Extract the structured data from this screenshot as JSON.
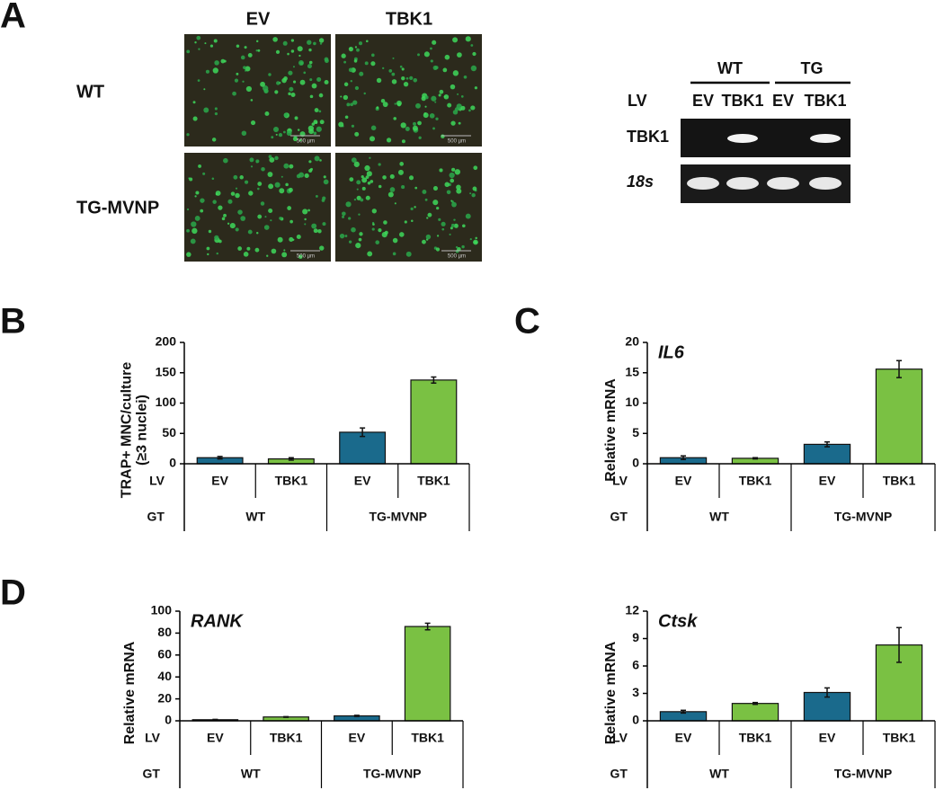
{
  "panel_a": {
    "panel": "A",
    "columns": [
      "EV",
      "TBK1"
    ],
    "rows": [
      "WT",
      "TG-MVNP"
    ],
    "scale_bar": "500 µm",
    "gel": {
      "groups": [
        "WT",
        "TG"
      ],
      "lv_label": "LV",
      "lanes": [
        "EV",
        "TBK1",
        "EV",
        "TBK1"
      ],
      "rows": [
        "TBK1",
        "18s"
      ]
    }
  },
  "chart_data": [
    {
      "type": "bar",
      "panel": "B",
      "ylabel": [
        "TRAP+ MNC/culture",
        "(≥3 nuclei)"
      ],
      "row_labels": [
        "LV",
        "GT"
      ],
      "categories": [
        "EV",
        "TBK1",
        "EV",
        "TBK1"
      ],
      "groups": [
        "WT",
        "TG-MVNP"
      ],
      "values": [
        10,
        8,
        52,
        138
      ],
      "errors": [
        2,
        2,
        7,
        5
      ],
      "colors": [
        "#1a6a8c",
        "#7ac143",
        "#1a6a8c",
        "#7ac143"
      ],
      "ylim": [
        0,
        200
      ],
      "yticks": [
        0,
        50,
        100,
        150,
        200
      ]
    },
    {
      "type": "bar",
      "panel": "C",
      "title": "IL6",
      "ylabel": [
        "Relative mRNA"
      ],
      "row_labels": [
        "LV",
        "GT"
      ],
      "categories": [
        "EV",
        "TBK1",
        "EV",
        "TBK1"
      ],
      "groups": [
        "WT",
        "TG-MVNP"
      ],
      "values": [
        1.0,
        0.9,
        3.2,
        15.6
      ],
      "errors": [
        0.3,
        0.1,
        0.4,
        1.4
      ],
      "colors": [
        "#1a6a8c",
        "#7ac143",
        "#1a6a8c",
        "#7ac143"
      ],
      "ylim": [
        0,
        20
      ],
      "yticks": [
        0,
        5,
        10,
        15,
        20
      ]
    },
    {
      "type": "bar",
      "panel": "D",
      "title": "RANK",
      "ylabel": [
        "Relative mRNA"
      ],
      "row_labels": [
        "LV",
        "GT"
      ],
      "categories": [
        "EV",
        "TBK1",
        "EV",
        "TBK1"
      ],
      "groups": [
        "WT",
        "TG-MVNP"
      ],
      "values": [
        1,
        3.5,
        4.5,
        86
      ],
      "errors": [
        0.3,
        0.3,
        0.5,
        3
      ],
      "colors": [
        "#1a6a8c",
        "#7ac143",
        "#1a6a8c",
        "#7ac143"
      ],
      "ylim": [
        0,
        100
      ],
      "yticks": [
        0,
        20,
        40,
        60,
        80,
        100
      ]
    },
    {
      "type": "bar",
      "title": "Ctsk",
      "ylabel": [
        "Relative mRNA"
      ],
      "row_labels": [
        "LV",
        "GT"
      ],
      "categories": [
        "EV",
        "TBK1",
        "EV",
        "TBK1"
      ],
      "groups": [
        "WT",
        "TG-MVNP"
      ],
      "values": [
        1.0,
        1.9,
        3.1,
        8.3
      ],
      "errors": [
        0.15,
        0.1,
        0.5,
        1.9
      ],
      "colors": [
        "#1a6a8c",
        "#7ac143",
        "#1a6a8c",
        "#7ac143"
      ],
      "ylim": [
        0,
        12
      ],
      "yticks": [
        0,
        3,
        6,
        9,
        12
      ]
    }
  ]
}
